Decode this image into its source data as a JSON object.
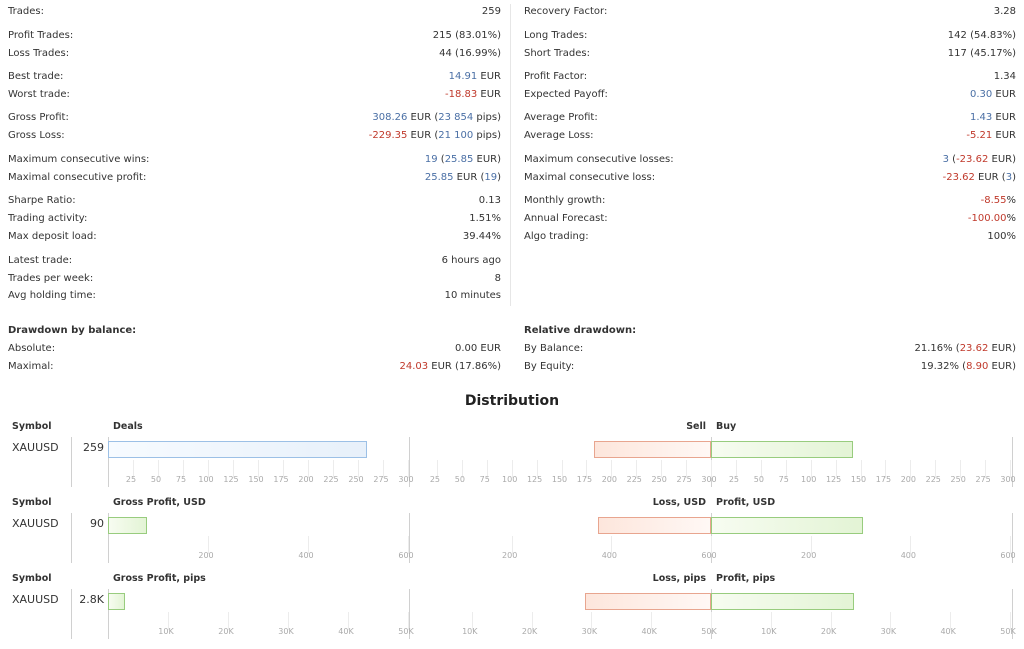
{
  "stats_left": [
    {
      "label": "Trades:",
      "value": "259"
    },
    {
      "label": "Profit Trades:",
      "value": "215 (83.01%)"
    },
    {
      "label": "Loss Trades:",
      "value": "44 (16.99%)"
    },
    {
      "label": "Best trade:",
      "value": "14.91 EUR"
    },
    {
      "label": "Worst trade:",
      "value": "-18.83 EUR"
    },
    {
      "label": "Gross Profit:",
      "value": "308.26 EUR (23 854 pips)"
    },
    {
      "label": "Gross Loss:",
      "value": "-229.35 EUR (21 100 pips)"
    },
    {
      "label": "Maximum consecutive wins:",
      "value": "19 (25.85 EUR)"
    },
    {
      "label": "Maximal consecutive profit:",
      "value": "25.85 EUR (19)"
    },
    {
      "label": "Sharpe Ratio:",
      "value": "0.13"
    },
    {
      "label": "Trading activity:",
      "value": "1.51%"
    },
    {
      "label": "Max deposit load:",
      "value": "39.44%"
    },
    {
      "label": "Latest trade:",
      "value": "6 hours ago"
    },
    {
      "label": "Trades per week:",
      "value": "8"
    },
    {
      "label": "Avg holding time:",
      "value": "10 minutes"
    }
  ],
  "stats_right": [
    {
      "label": "Recovery Factor:",
      "value": "3.28"
    },
    {
      "label": "Long Trades:",
      "value": "142 (54.83%)"
    },
    {
      "label": "Short Trades:",
      "value": "117 (45.17%)"
    },
    {
      "label": "Profit Factor:",
      "value": "1.34"
    },
    {
      "label": "Expected Payoff:",
      "value": "0.30 EUR"
    },
    {
      "label": "Average Profit:",
      "value": "1.43 EUR"
    },
    {
      "label": "Average Loss:",
      "value": "-5.21 EUR"
    },
    {
      "label": "Maximum consecutive losses:",
      "value": "3 (-23.62 EUR)"
    },
    {
      "label": "Maximal consecutive loss:",
      "value": "-23.62 EUR (3)"
    },
    {
      "label": "Monthly growth:",
      "value": "-8.55%"
    },
    {
      "label": "Annual Forecast:",
      "value": "-100.00%"
    },
    {
      "label": "Algo trading:",
      "value": "100%"
    }
  ],
  "drawdown": {
    "heading": "Drawdown by balance:",
    "absolute_label": "Absolute:",
    "absolute_value": "0.00 EUR",
    "maximal_label": "Maximal:",
    "maximal_value": "24.03 EUR (17.86%)"
  },
  "relative": {
    "heading": "Relative drawdown:",
    "balance_label": "By Balance:",
    "balance_value": "21.16% (23.62 EUR)",
    "equity_label": "By Equity:",
    "equity_value": "19.32% (8.90 EUR)"
  },
  "distribution": {
    "title": "Distribution",
    "symbol_header": "Symbol",
    "charts": [
      {
        "symbol": "XAUUSD",
        "count": "259",
        "left_label": "Deals",
        "neg_label": "Sell",
        "pos_label": "Buy",
        "left_value": 259,
        "left_max": 300,
        "left_ticks": [
          "25",
          "50",
          "75",
          "100",
          "125",
          "150",
          "175",
          "200",
          "225",
          "250",
          "275",
          "300"
        ],
        "neg_value": 117,
        "neg_max": 300,
        "neg_ticks": [
          "300",
          "275",
          "250",
          "225",
          "200",
          "175",
          "150",
          "125",
          "100",
          "75",
          "50",
          "25"
        ],
        "pos_value": 142,
        "pos_max": 300,
        "pos_ticks": [
          "25",
          "50",
          "75",
          "100",
          "125",
          "150",
          "175",
          "200",
          "225",
          "250",
          "275",
          "300"
        ]
      },
      {
        "symbol": "XAUUSD",
        "count": "90",
        "left_label": "Gross Profit, USD",
        "neg_label": "Loss, USD",
        "pos_label": "Profit, USD",
        "left_value": 90,
        "left_max": 700,
        "left_ticks": [
          "200",
          "400",
          "600"
        ],
        "neg_value": 265,
        "neg_max": 700,
        "neg_ticks": [
          "600",
          "400",
          "200"
        ],
        "pos_value": 355,
        "pos_max": 700,
        "pos_ticks": [
          "200",
          "400",
          "600"
        ]
      },
      {
        "symbol": "XAUUSD",
        "count": "2.8K",
        "left_label": "Gross Profit, pips",
        "neg_label": "Loss, pips",
        "pos_label": "Profit, pips",
        "left_value": 2800,
        "left_max": 50000,
        "left_ticks": [
          "10K",
          "20K",
          "30K",
          "40K",
          "50K"
        ],
        "neg_value": 21100,
        "neg_max": 50000,
        "neg_ticks": [
          "50K",
          "40K",
          "30K",
          "20K",
          "10K"
        ],
        "pos_value": 23854,
        "pos_max": 50000,
        "pos_ticks": [
          "10K",
          "20K",
          "30K",
          "40K",
          "50K"
        ]
      }
    ]
  }
}
